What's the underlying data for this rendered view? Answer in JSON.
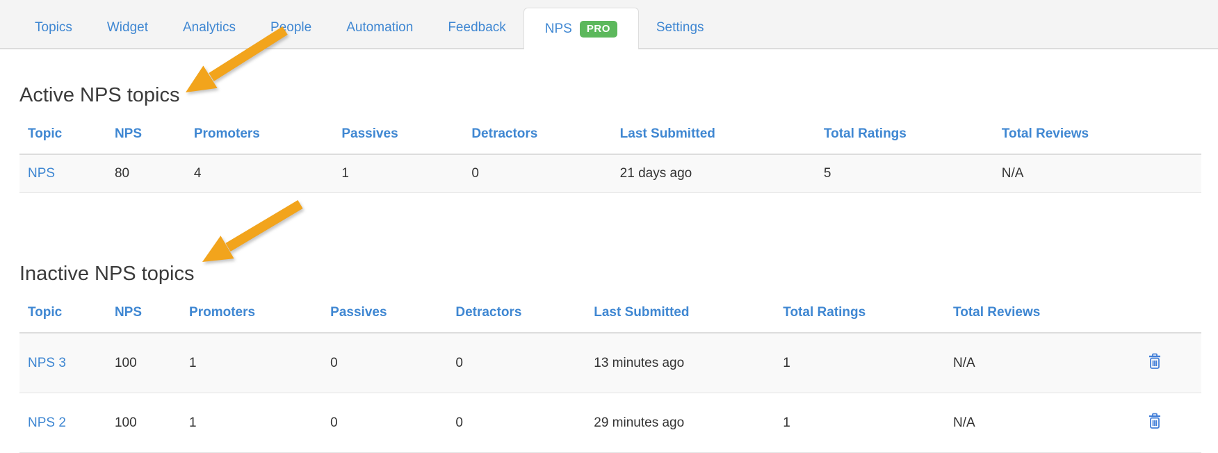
{
  "tabs": {
    "items": [
      {
        "label": "Topics",
        "active": false
      },
      {
        "label": "Widget",
        "active": false
      },
      {
        "label": "Analytics",
        "active": false
      },
      {
        "label": "People",
        "active": false
      },
      {
        "label": "Automation",
        "active": false
      },
      {
        "label": "Feedback",
        "active": false
      },
      {
        "label": "NPS",
        "badge": "PRO",
        "active": true
      },
      {
        "label": "Settings",
        "active": false
      }
    ]
  },
  "sections": [
    {
      "title": "Active NPS topics",
      "columns": [
        "Topic",
        "NPS",
        "Promoters",
        "Passives",
        "Detractors",
        "Last Submitted",
        "Total Ratings",
        "Total Reviews"
      ],
      "rows": [
        {
          "topic": "NPS",
          "nps": "80",
          "promoters": "4",
          "passives": "1",
          "detractors": "0",
          "last_submitted": "21 days ago",
          "total_ratings": "5",
          "total_reviews": "N/A",
          "deletable": false
        }
      ]
    },
    {
      "title": "Inactive NPS topics",
      "columns": [
        "Topic",
        "NPS",
        "Promoters",
        "Passives",
        "Detractors",
        "Last Submitted",
        "Total Ratings",
        "Total Reviews"
      ],
      "rows": [
        {
          "topic": "NPS 3",
          "nps": "100",
          "promoters": "1",
          "passives": "0",
          "detractors": "0",
          "last_submitted": "13 minutes ago",
          "total_ratings": "1",
          "total_reviews": "N/A",
          "deletable": true
        },
        {
          "topic": "NPS 2",
          "nps": "100",
          "promoters": "1",
          "passives": "0",
          "detractors": "0",
          "last_submitted": "29 minutes ago",
          "total_ratings": "1",
          "total_reviews": "N/A",
          "deletable": true
        }
      ]
    }
  ],
  "icons": {
    "delete": "trash-icon",
    "annotation": "arrow-annotation"
  },
  "colors": {
    "accent_blue": "#3f87d2",
    "badge_green": "#5cb85c",
    "arrow_orange": "#f2a41c",
    "tabbar_bg": "#f4f4f4",
    "stripe_bg": "#f9f9f9"
  }
}
